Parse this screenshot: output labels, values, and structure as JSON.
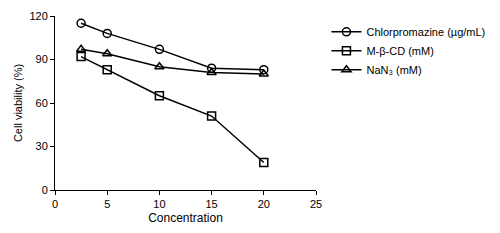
{
  "chart_data": {
    "type": "line",
    "x_label": "Concentration",
    "y_label": "Cell viability (%)",
    "x": [
      2.5,
      5,
      10,
      15,
      20
    ],
    "series": [
      {
        "name": "Chlorpromazine (µg/mL)",
        "color": "#000000",
        "marker": "circle-open",
        "line_style": "solid",
        "values": [
          115,
          108,
          97,
          84,
          83
        ]
      },
      {
        "name": "M-β-CD (mM)",
        "color": "#000000",
        "marker": "square-open",
        "line_style": "solid",
        "values": [
          92,
          83,
          65,
          51,
          19
        ]
      },
      {
        "name": "NaN₃ (mM)",
        "color": "#000000",
        "marker": "triangle-up-open",
        "line_style": "solid",
        "values": [
          97,
          94,
          85,
          81,
          80
        ]
      }
    ],
    "xlim": [
      0,
      25
    ],
    "xticks": [
      0,
      5,
      10,
      15,
      20,
      25
    ],
    "ylim": [
      0,
      120
    ],
    "yticks": [
      0,
      30,
      60,
      90,
      120
    ],
    "grid": false,
    "legend": "right"
  }
}
